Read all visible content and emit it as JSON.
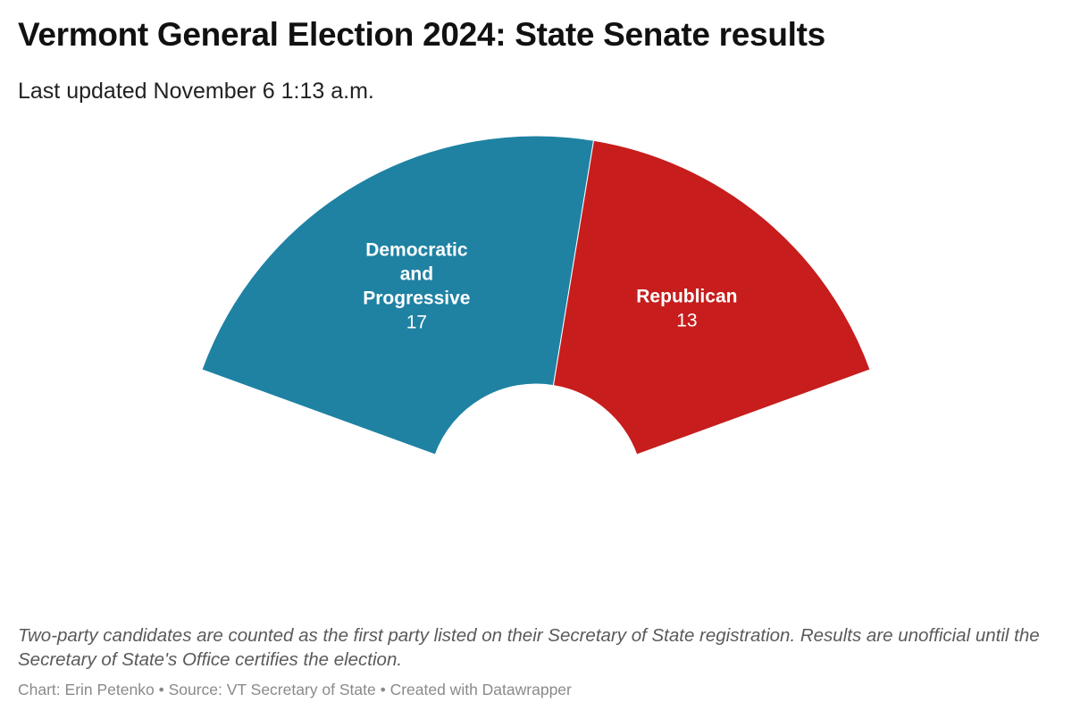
{
  "header": {
    "title": "Vermont General Election 2024: State Senate results",
    "subtitle": "Last updated November 6 1:13 a.m."
  },
  "chart_data": {
    "type": "pie",
    "variant": "semicircle",
    "title": "Vermont General Election 2024: State Senate results",
    "subtitle": "Last updated November 6 1:13 a.m.",
    "total": 30,
    "slices": [
      {
        "label_lines": [
          "Democratic",
          "and",
          "Progressive"
        ],
        "value": 17,
        "color": "#1f82a3"
      },
      {
        "label_lines": [
          "Republican"
        ],
        "value": 13,
        "color": "#c71d1d"
      }
    ]
  },
  "footer": {
    "note": "Two-party candidates are counted as the first party listed on their Secretary of State registration. Results are unofficial until the Secretary of State's Office certifies the election.",
    "credits": "Chart: Erin Petenko • Source: VT Secretary of State • Created with Datawrapper"
  }
}
